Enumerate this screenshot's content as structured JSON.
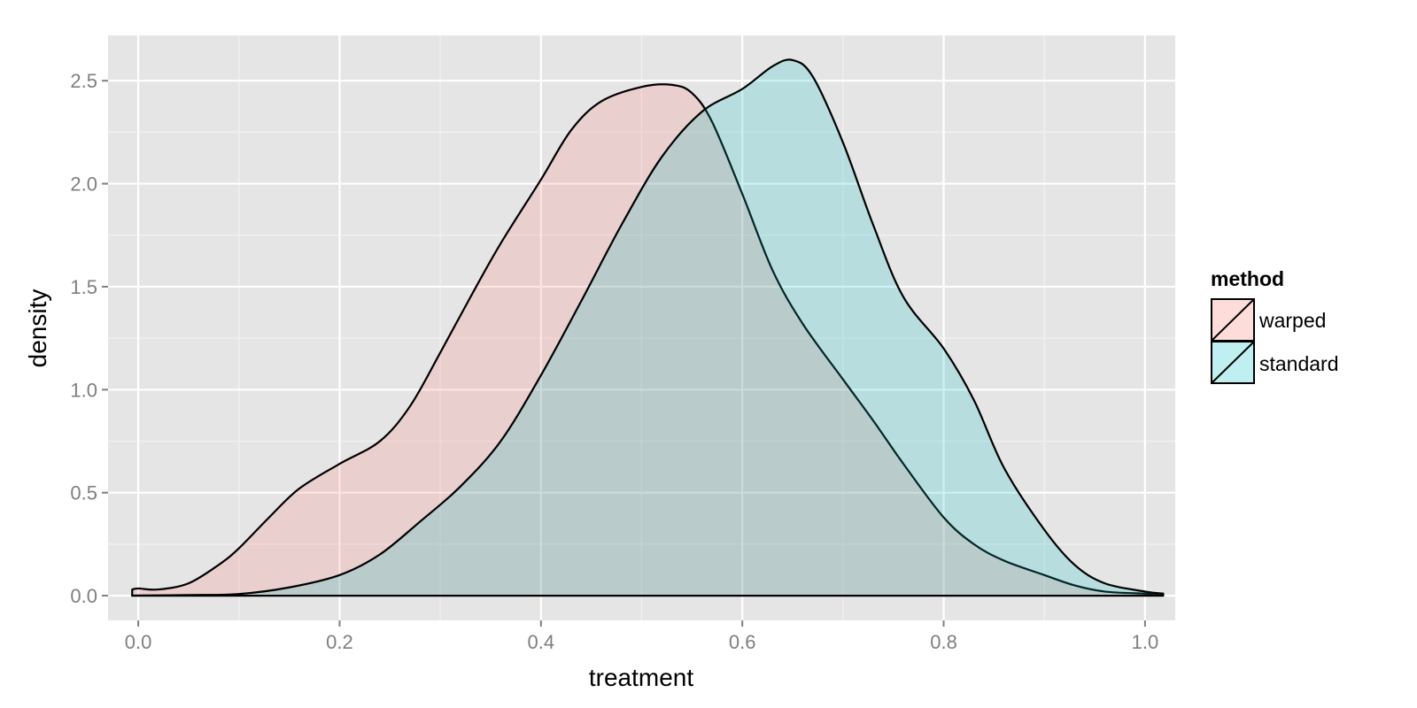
{
  "chart_data": {
    "type": "area",
    "xlabel": "treatment",
    "ylabel": "density",
    "xlim": [
      -0.03,
      1.03
    ],
    "ylim": [
      -0.12,
      2.72
    ],
    "x_ticks": [
      0.0,
      0.2,
      0.4,
      0.6,
      0.8,
      1.0
    ],
    "x_tick_labels": [
      "0.0",
      "0.2",
      "0.4",
      "0.6",
      "0.8",
      "1.0"
    ],
    "y_ticks": [
      0.0,
      0.5,
      1.0,
      1.5,
      2.0,
      2.5
    ],
    "y_tick_labels": [
      "0.0",
      "0.5",
      "1.0",
      "1.5",
      "2.0",
      "2.5"
    ],
    "grid": true,
    "legend": {
      "title": "method",
      "position": "right",
      "entries": [
        {
          "label": "warped",
          "color": "#F8766D"
        },
        {
          "label": "standard",
          "color": "#00BFC4"
        }
      ]
    },
    "series": [
      {
        "name": "warped",
        "color": "#F8766D",
        "x": [
          -0.006,
          0.0,
          0.02,
          0.05,
          0.08,
          0.1,
          0.13,
          0.16,
          0.2,
          0.24,
          0.27,
          0.3,
          0.33,
          0.36,
          0.4,
          0.43,
          0.46,
          0.5,
          0.53,
          0.55,
          0.57,
          0.6,
          0.63,
          0.66,
          0.7,
          0.73,
          0.76,
          0.8,
          0.83,
          0.86,
          0.9,
          0.93,
          0.96,
          1.0,
          1.018
        ],
        "y": [
          0.03,
          0.035,
          0.03,
          0.06,
          0.15,
          0.23,
          0.38,
          0.52,
          0.64,
          0.75,
          0.92,
          1.18,
          1.45,
          1.71,
          2.02,
          2.26,
          2.4,
          2.47,
          2.48,
          2.44,
          2.3,
          1.95,
          1.58,
          1.32,
          1.05,
          0.85,
          0.64,
          0.38,
          0.25,
          0.17,
          0.1,
          0.05,
          0.02,
          0.01,
          0.01
        ]
      },
      {
        "name": "standard",
        "color": "#00BFC4",
        "x": [
          -0.006,
          0.0,
          0.05,
          0.1,
          0.15,
          0.2,
          0.24,
          0.28,
          0.32,
          0.36,
          0.4,
          0.44,
          0.48,
          0.52,
          0.56,
          0.6,
          0.63,
          0.65,
          0.67,
          0.7,
          0.73,
          0.76,
          0.8,
          0.83,
          0.86,
          0.9,
          0.93,
          0.96,
          1.0,
          1.018
        ],
        "y": [
          0.0,
          0.001,
          0.003,
          0.008,
          0.04,
          0.1,
          0.2,
          0.36,
          0.53,
          0.75,
          1.07,
          1.43,
          1.8,
          2.13,
          2.35,
          2.46,
          2.57,
          2.6,
          2.52,
          2.2,
          1.8,
          1.45,
          1.2,
          0.95,
          0.62,
          0.32,
          0.15,
          0.06,
          0.02,
          0.01
        ]
      }
    ]
  }
}
